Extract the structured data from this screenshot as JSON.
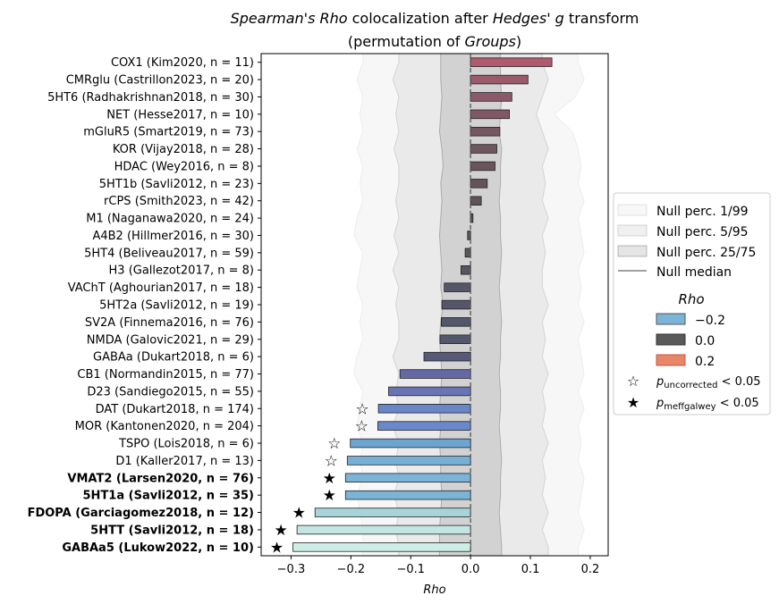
{
  "chart_data": {
    "type": "bar",
    "orientation": "horizontal",
    "title_line1": {
      "italic_a": "Spearman's Rho",
      "normal_a": " colocalization after ",
      "italic_b": "Hedges' g",
      "normal_b": " transform"
    },
    "title_line2": {
      "normal_a": "(permutation of ",
      "italic_a": "Groups",
      "normal_b": ")"
    },
    "xlabel": "Rho",
    "xlim": [
      -0.35,
      0.23
    ],
    "xticks": [
      -0.3,
      -0.2,
      -0.1,
      0.0,
      0.1,
      0.2
    ],
    "xtick_labels": [
      "−0.3",
      "−0.2",
      "−0.1",
      "0.0",
      "0.1",
      "0.2"
    ],
    "categories": [
      {
        "label": "COX1 (Kim2020, n = 11)",
        "value": 0.136,
        "color": "#b05a6e",
        "bold": false,
        "marker": ""
      },
      {
        "label": "CMRglu (Castrillon2023, n = 20)",
        "value": 0.096,
        "color": "#9a5a6c",
        "bold": false,
        "marker": ""
      },
      {
        "label": "5HT6 (Radhakrishnan2018, n = 30)",
        "value": 0.069,
        "color": "#8a5a69",
        "bold": false,
        "marker": ""
      },
      {
        "label": "NET (Hesse2017, n = 10)",
        "value": 0.065,
        "color": "#805966",
        "bold": false,
        "marker": ""
      },
      {
        "label": "mGluR5 (Smart2019, n = 73)",
        "value": 0.049,
        "color": "#755762",
        "bold": false,
        "marker": ""
      },
      {
        "label": "KOR (Vijay2018, n = 28)",
        "value": 0.044,
        "color": "#6e565f",
        "bold": false,
        "marker": ""
      },
      {
        "label": "HDAC (Wey2016, n = 8)",
        "value": 0.041,
        "color": "#6a555d",
        "bold": false,
        "marker": ""
      },
      {
        "label": "5HT1b (Savli2012, n = 23)",
        "value": 0.028,
        "color": "#63545a",
        "bold": false,
        "marker": ""
      },
      {
        "label": "rCPS (Smith2023, n = 42)",
        "value": 0.018,
        "color": "#5e5358",
        "bold": false,
        "marker": ""
      },
      {
        "label": "M1 (Naganawa2020, n = 24)",
        "value": 0.004,
        "color": "#5a5a5a",
        "bold": false,
        "marker": ""
      },
      {
        "label": "A4B2 (Hillmer2016, n = 30)",
        "value": -0.005,
        "color": "#58585c",
        "bold": false,
        "marker": ""
      },
      {
        "label": "5HT4 (Beliveau2017, n = 59)",
        "value": -0.009,
        "color": "#57575e",
        "bold": false,
        "marker": ""
      },
      {
        "label": "H3 (Gallezot2017, n = 8)",
        "value": -0.016,
        "color": "#56565f",
        "bold": false,
        "marker": ""
      },
      {
        "label": "VAChT (Aghourian2017, n = 18)",
        "value": -0.044,
        "color": "#555668",
        "bold": false,
        "marker": ""
      },
      {
        "label": "5HT2a (Savli2012, n = 19)",
        "value": -0.048,
        "color": "#555669",
        "bold": false,
        "marker": ""
      },
      {
        "label": "SV2A (Finnema2016, n = 76)",
        "value": -0.049,
        "color": "#54566a",
        "bold": false,
        "marker": ""
      },
      {
        "label": "NMDA (Galovic2021, n = 29)",
        "value": -0.051,
        "color": "#54576c",
        "bold": false,
        "marker": ""
      },
      {
        "label": "GABAa (Dukart2018, n = 6)",
        "value": -0.078,
        "color": "#58597a",
        "bold": false,
        "marker": ""
      },
      {
        "label": "CB1 (Normandin2015, n = 77)",
        "value": -0.118,
        "color": "#6668a3",
        "bold": false,
        "marker": ""
      },
      {
        "label": "D23 (Sandiego2015, n = 55)",
        "value": -0.137,
        "color": "#6a74b4",
        "bold": false,
        "marker": ""
      },
      {
        "label": "DAT (Dukart2018, n = 174)",
        "value": -0.154,
        "color": "#6a86c8",
        "bold": false,
        "marker": "open"
      },
      {
        "label": "MOR (Kantonen2020, n = 204)",
        "value": -0.155,
        "color": "#6a88ca",
        "bold": false,
        "marker": "open"
      },
      {
        "label": "TSPO (Lois2018, n = 6)",
        "value": -0.201,
        "color": "#6ba5d0",
        "bold": false,
        "marker": "open"
      },
      {
        "label": "D1 (Kaller2017, n = 13)",
        "value": -0.206,
        "color": "#76b0d6",
        "bold": false,
        "marker": "open"
      },
      {
        "label": "VMAT2 (Larsen2020, n = 76)",
        "value": -0.209,
        "color": "#7ab5d8",
        "bold": true,
        "marker": "filled"
      },
      {
        "label": "5HT1a (Savli2012, n = 35)",
        "value": -0.209,
        "color": "#7ab5d8",
        "bold": true,
        "marker": "filled"
      },
      {
        "label": "FDOPA (Garciagomez2018, n = 12)",
        "value": -0.26,
        "color": "#a6d4d8",
        "bold": true,
        "marker": "filled"
      },
      {
        "label": "5HTT (Savli2012, n = 18)",
        "value": -0.29,
        "color": "#c4e6e2",
        "bold": true,
        "marker": "filled"
      },
      {
        "label": "GABAa5 (Lukow2022, n = 10)",
        "value": -0.297,
        "color": "#cdeee4",
        "bold": true,
        "marker": "filled"
      }
    ],
    "null_median": [
      0.0,
      0.0,
      0.0,
      0.0,
      0.0,
      0.0,
      0.0,
      0.0,
      0.0,
      0.0,
      0.0,
      0.0,
      0.0,
      0.0,
      0.0,
      0.0,
      0.0,
      0.0,
      0.0,
      0.0,
      0.0,
      0.0,
      0.0,
      0.0,
      0.0,
      0.0,
      0.0,
      0.0,
      0.0
    ],
    "null_25": [
      -0.05,
      -0.05,
      -0.048,
      -0.05,
      -0.052,
      -0.048,
      -0.046,
      -0.05,
      -0.048,
      -0.05,
      -0.052,
      -0.05,
      -0.048,
      -0.05,
      -0.046,
      -0.05,
      -0.052,
      -0.05,
      -0.048,
      -0.05,
      -0.052,
      -0.05,
      -0.052,
      -0.05,
      -0.05,
      -0.048,
      -0.05,
      -0.052,
      -0.052
    ],
    "null_75": [
      0.05,
      0.05,
      0.052,
      0.05,
      0.048,
      0.052,
      0.05,
      0.05,
      0.048,
      0.05,
      0.05,
      0.052,
      0.05,
      0.048,
      0.05,
      0.052,
      0.05,
      0.05,
      0.048,
      0.05,
      0.05,
      0.048,
      0.05,
      0.052,
      0.05,
      0.05,
      0.048,
      0.05,
      0.052
    ],
    "null_5": [
      -0.12,
      -0.13,
      -0.12,
      -0.125,
      -0.12,
      -0.128,
      -0.12,
      -0.12,
      -0.125,
      -0.12,
      -0.128,
      -0.12,
      -0.13,
      -0.12,
      -0.125,
      -0.12,
      -0.12,
      -0.13,
      -0.12,
      -0.125,
      -0.12,
      -0.13,
      -0.12,
      -0.125,
      -0.12,
      -0.128,
      -0.12,
      -0.125,
      -0.12
    ],
    "null_95": [
      0.12,
      0.13,
      0.12,
      0.11,
      0.12,
      0.13,
      0.12,
      0.125,
      0.12,
      0.13,
      0.12,
      0.125,
      0.12,
      0.12,
      0.13,
      0.12,
      0.125,
      0.12,
      0.13,
      0.12,
      0.125,
      0.12,
      0.13,
      0.12,
      0.125,
      0.12,
      0.13,
      0.12,
      0.13
    ],
    "null_1": [
      -0.18,
      -0.19,
      -0.18,
      -0.185,
      -0.18,
      -0.19,
      -0.18,
      -0.185,
      -0.18,
      -0.19,
      -0.195,
      -0.18,
      -0.185,
      -0.19,
      -0.18,
      -0.185,
      -0.18,
      -0.19,
      -0.195,
      -0.18,
      -0.185,
      -0.19,
      -0.18,
      -0.185,
      -0.18,
      -0.19,
      -0.185,
      -0.18,
      -0.18
    ],
    "null_99": [
      0.18,
      0.19,
      0.175,
      0.14,
      0.17,
      0.18,
      0.185,
      0.18,
      0.19,
      0.18,
      0.185,
      0.19,
      0.18,
      0.185,
      0.18,
      0.19,
      0.18,
      0.185,
      0.19,
      0.18,
      0.19,
      0.18,
      0.185,
      0.18,
      0.19,
      0.185,
      0.18,
      0.19,
      0.18
    ],
    "legend": {
      "null_items": [
        "Null perc. 1/99",
        "Null perc. 5/95",
        "Null perc. 25/75",
        "Null median"
      ],
      "rho_title": "Rho",
      "rho_items": [
        {
          "label": "−0.2",
          "color": "#7ab5d8"
        },
        {
          "label": "0.0",
          "color": "#5a5a5a"
        },
        {
          "label": "0.2",
          "color": "#e8866a"
        }
      ],
      "p_uncorrected": {
        "p": "p",
        "sub": "uncorrected",
        "text": " < 0.05"
      },
      "p_meff": {
        "p": "p",
        "sub": "meffgalwey",
        "text": " < 0.05"
      },
      "placement": "center-right"
    }
  }
}
